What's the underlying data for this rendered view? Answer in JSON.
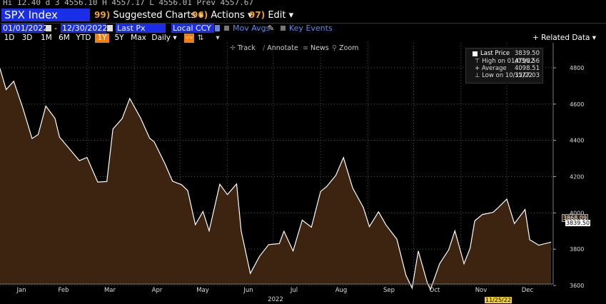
{
  "topline": "Hi 12.40 d 3 4556.10 H 4557.17 L 4556.01 Prev 4557.67",
  "ticker": "SPX Index",
  "menu": {
    "suggested_num": "99)",
    "suggested": "Suggested Charts",
    "actions_num": "96)",
    "actions": "Actions",
    "edit_num": "97)",
    "edit": "Edit"
  },
  "params": {
    "start_date": "01/01/2022",
    "end_date": "12/30/2022",
    "field": "Last Px",
    "currency": "Local CCY",
    "mov_avgs": "Mov Avgs",
    "key_events": "Key Events",
    "dash": "-"
  },
  "ranges": [
    "1D",
    "3D",
    "1M",
    "6M",
    "YTD",
    "1Y",
    "5Y",
    "Max"
  ],
  "selected_range": "1Y",
  "period": "Daily",
  "related_data": "+ Related Data",
  "tools": {
    "track": "Track",
    "annotate": "Annotate",
    "news": "News",
    "zoom": "Zoom"
  },
  "legend": {
    "last_price_label": "Last Price",
    "last_price_value": "3839.50",
    "high_label": "High on 01/03/22",
    "high_value": "4796.56",
    "average_label": "Average",
    "average_value": "4098.51",
    "low_label": "Low on 10/12/22",
    "low_value": "3577.03"
  },
  "tags": {
    "price1": "3868.09",
    "price2": "3839.50",
    "date": "11/25/22"
  },
  "colors": {
    "accent_blue": "#1a2ee8",
    "orange": "#f07f10",
    "fill": "#3c2410",
    "line": "#ffffff"
  },
  "chart_data": {
    "type": "area",
    "title": "",
    "xlabel": "2022",
    "ylabel": "",
    "ylim": [
      3450,
      4850
    ],
    "y_ticks": [
      3600,
      3800,
      4000,
      4200,
      4400,
      4600,
      4800
    ],
    "y_tick_labels": [
      "3600",
      "3800",
      "4000",
      "4200",
      "4400",
      "4600",
      "4800"
    ],
    "x_tick_labels": [
      "Jan",
      "Feb",
      "Mar",
      "Apr",
      "May",
      "Jun",
      "Jul",
      "Aug",
      "Sep",
      "Oct",
      "Nov",
      "Dec"
    ],
    "year_label": "2022",
    "series": [
      {
        "name": "Last Price",
        "x": [
          "2022-01-03",
          "2022-01-07",
          "2022-01-12",
          "2022-01-18",
          "2022-01-24",
          "2022-01-28",
          "2022-02-02",
          "2022-02-08",
          "2022-02-11",
          "2022-02-18",
          "2022-02-24",
          "2022-03-01",
          "2022-03-08",
          "2022-03-14",
          "2022-03-18",
          "2022-03-24",
          "2022-03-29",
          "2022-04-05",
          "2022-04-11",
          "2022-04-14",
          "2022-04-21",
          "2022-04-26",
          "2022-05-02",
          "2022-05-06",
          "2022-05-11",
          "2022-05-16",
          "2022-05-20",
          "2022-05-27",
          "2022-06-01",
          "2022-06-07",
          "2022-06-10",
          "2022-06-16",
          "2022-06-22",
          "2022-06-28",
          "2022-07-05",
          "2022-07-08",
          "2022-07-14",
          "2022-07-20",
          "2022-07-26",
          "2022-08-01",
          "2022-08-05",
          "2022-08-11",
          "2022-08-16",
          "2022-08-22",
          "2022-08-29",
          "2022-09-02",
          "2022-09-08",
          "2022-09-13",
          "2022-09-20",
          "2022-09-26",
          "2022-09-30",
          "2022-10-04",
          "2022-10-10",
          "2022-10-12",
          "2022-10-18",
          "2022-10-24",
          "2022-10-28",
          "2022-11-03",
          "2022-11-07",
          "2022-11-10",
          "2022-11-15",
          "2022-11-22",
          "2022-11-25",
          "2022-12-01",
          "2022-12-06",
          "2022-12-13",
          "2022-12-16",
          "2022-12-22",
          "2022-12-30"
        ],
        "y": [
          4796,
          4680,
          4726,
          4577,
          4410,
          4432,
          4589,
          4521,
          4418,
          4348,
          4288,
          4306,
          4170,
          4173,
          4463,
          4520,
          4631,
          4525,
          4412,
          4392,
          4272,
          4175,
          4155,
          4123,
          3935,
          4008,
          3901,
          4158,
          4101,
          4160,
          3900,
          3666,
          3760,
          3825,
          3831,
          3899,
          3790,
          3960,
          3921,
          4118,
          4145,
          4207,
          4305,
          4138,
          4030,
          3924,
          4006,
          3932,
          3855,
          3655,
          3585,
          3790,
          3612,
          3577,
          3720,
          3797,
          3901,
          3720,
          3806,
          3956,
          3991,
          4003,
          4026,
          4076,
          3941,
          4019,
          3852,
          3822,
          3839
        ]
      }
    ]
  }
}
